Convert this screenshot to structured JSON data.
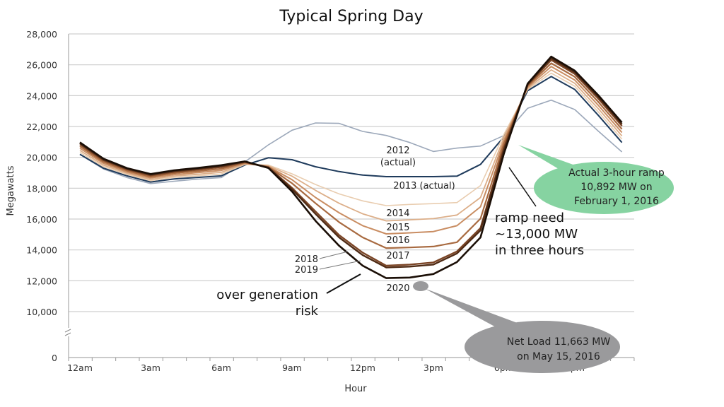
{
  "chart_data": {
    "type": "line",
    "title": "Typical Spring Day",
    "xlabel": "Hour",
    "ylabel": "Megawatts",
    "x": [
      0,
      1,
      2,
      3,
      4,
      5,
      6,
      7,
      8,
      9,
      10,
      11,
      12,
      13,
      14,
      15,
      16,
      17,
      18,
      19,
      20,
      21,
      22,
      23
    ],
    "x_tick_labels": [
      {
        "hour": 0,
        "label": "12am"
      },
      {
        "hour": 3,
        "label": "3am"
      },
      {
        "hour": 6,
        "label": "6am"
      },
      {
        "hour": 9,
        "label": "9am"
      },
      {
        "hour": 12,
        "label": "12pm"
      },
      {
        "hour": 15,
        "label": "3pm"
      },
      {
        "hour": 18,
        "label": "6pm"
      },
      {
        "hour": 21,
        "label": "9pm"
      }
    ],
    "y_ticks": [
      0,
      10000,
      12000,
      14000,
      16000,
      18000,
      20000,
      22000,
      24000,
      26000,
      28000
    ],
    "y_tick_labels": [
      "0",
      "10,000",
      "12,000",
      "14,000",
      "16,000",
      "18,000",
      "20,000",
      "22,000",
      "24,000",
      "26,000",
      "28,000"
    ],
    "ylim": [
      10000,
      28000
    ],
    "y_axis_break": true,
    "grid": "horizontal",
    "series": [
      {
        "name": "2012 (actual)",
        "color": "#9ca8ba",
        "values": [
          20185,
          19250,
          18690,
          18300,
          18450,
          18590,
          18690,
          19700,
          20810,
          21760,
          22230,
          22200,
          21680,
          21420,
          20960,
          20380,
          20600,
          20730,
          21420,
          23180,
          23710,
          23100,
          21700,
          20350
        ]
      },
      {
        "name": "2013 (actual)",
        "color": "#1f3b5c",
        "values": [
          20200,
          19300,
          18800,
          18400,
          18600,
          18700,
          18800,
          19500,
          19970,
          19850,
          19390,
          19080,
          18850,
          18750,
          18750,
          18750,
          18780,
          19540,
          21340,
          24320,
          25240,
          24400,
          22720,
          20960
        ]
      },
      {
        "name": "2014",
        "color": "#e9cdb0",
        "values": [
          20330,
          19400,
          18890,
          18490,
          18700,
          18800,
          18920,
          19540,
          19500,
          18930,
          18240,
          17630,
          17180,
          16870,
          16950,
          17000,
          17070,
          18170,
          21500,
          24400,
          25460,
          24610,
          22940,
          21180
        ]
      },
      {
        "name": "2015",
        "color": "#dcae88",
        "values": [
          20450,
          19500,
          18970,
          18570,
          18790,
          18900,
          19030,
          19580,
          19450,
          18780,
          17860,
          17020,
          16340,
          15880,
          15950,
          16030,
          16260,
          17400,
          21300,
          24470,
          25670,
          24800,
          23150,
          21390
        ]
      },
      {
        "name": "2016",
        "color": "#c98d62",
        "values": [
          20590,
          19610,
          19050,
          18660,
          18880,
          19010,
          19150,
          19620,
          19400,
          18550,
          17400,
          16410,
          15570,
          15040,
          15110,
          15190,
          15570,
          16800,
          21100,
          24550,
          25890,
          25010,
          23370,
          21610
        ]
      },
      {
        "name": "2017",
        "color": "#a86a40",
        "values": [
          20720,
          19710,
          19140,
          18750,
          18980,
          19110,
          19260,
          19660,
          19380,
          18320,
          17020,
          15800,
          14810,
          14120,
          14160,
          14220,
          14500,
          16030,
          20900,
          24630,
          26100,
          25220,
          23590,
          21830
        ]
      },
      {
        "name": "2018",
        "color": "#7b4526",
        "values": [
          20840,
          19810,
          19220,
          18830,
          19060,
          19210,
          19370,
          19700,
          19350,
          18020,
          16490,
          14960,
          13820,
          12980,
          13050,
          13190,
          13900,
          15420,
          20650,
          24700,
          26310,
          25410,
          23800,
          22040
        ]
      },
      {
        "name": "2019",
        "color": "#4f2b15",
        "values": [
          20910,
          19860,
          19260,
          18880,
          19110,
          19260,
          19430,
          19720,
          19330,
          17940,
          16330,
          14810,
          13660,
          12860,
          12920,
          13050,
          13770,
          15270,
          20500,
          24740,
          26420,
          25520,
          23920,
          22150
        ]
      },
      {
        "name": "2020",
        "color": "#1a0e06",
        "values": [
          20970,
          19910,
          19300,
          18920,
          19160,
          19310,
          19490,
          19740,
          19310,
          17790,
          15880,
          14270,
          12980,
          12170,
          12210,
          12440,
          13210,
          14810,
          20270,
          24780,
          26530,
          25620,
          24020,
          22260
        ]
      }
    ],
    "series_labels": {
      "s2012": "2012",
      "s2012_sub": "(actual)",
      "s2013": "2013 (actual)",
      "s2014": "2014",
      "s2015": "2015",
      "s2016": "2016",
      "s2017": "2017",
      "s2018": "2018",
      "s2019": "2019",
      "s2020": "2020"
    },
    "annotations": {
      "over_generation_line1": "over generation",
      "over_generation_line2": "risk",
      "ramp_line1": "ramp need",
      "ramp_line2": "~13,000 MW",
      "ramp_line3": "in three hours",
      "green_callout": [
        "Actual 3-hour ramp",
        "10,892 MW on",
        "February 1, 2016"
      ],
      "green_color": "#86d3a1",
      "gray_callout": [
        "Net Load 11,663 MW",
        "on May 15, 2016"
      ],
      "gray_color": "#9a9a9c"
    }
  }
}
